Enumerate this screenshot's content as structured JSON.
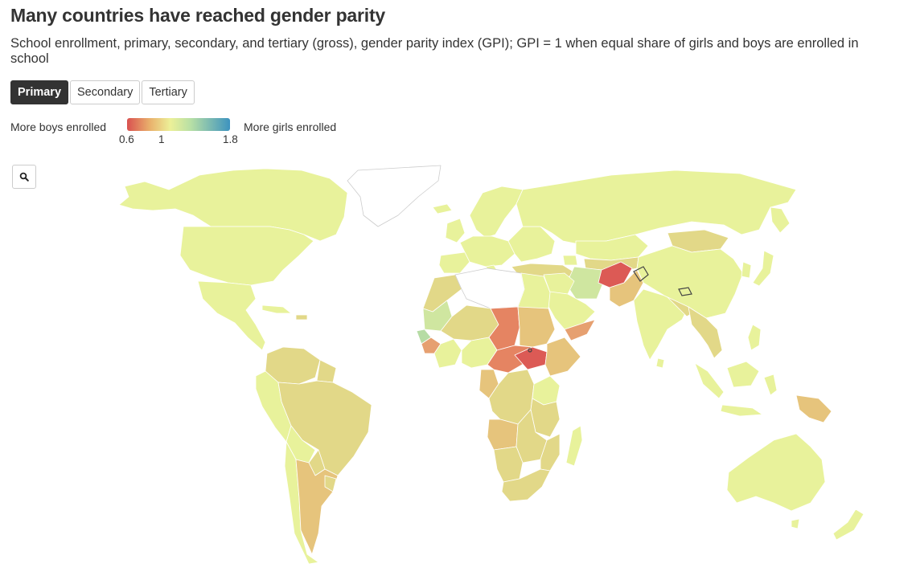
{
  "title": "Many countries have reached gender parity",
  "subtitle": "School enrollment, primary, secondary, and tertiary (gross), gender parity index (GPI); GPI = 1 when equal share of girls and boys are enrolled in school",
  "tabs": [
    {
      "label": "Primary",
      "active": true
    },
    {
      "label": "Secondary",
      "active": false
    },
    {
      "label": "Tertiary",
      "active": false
    }
  ],
  "legend": {
    "left_label": "More boys enrolled",
    "right_label": "More girls enrolled",
    "min": "0.6",
    "mid": "1",
    "max": "1.8",
    "colors": [
      "#d95150",
      "#e9b06c",
      "#ecf098",
      "#b7dfa5",
      "#3d93bf"
    ]
  },
  "zoom_icon": "search-icon",
  "map": {
    "selected_tab": "Primary",
    "colors": {
      "parity": "#e8f29b",
      "slight_boys": "#e2d888",
      "moderate_boys": "#e6c47c",
      "more_boys": "#e6a070",
      "many_boys": "#e58462",
      "most_boys": "#dc5a55",
      "slight_girls": "#cfe6a0",
      "girls": "#b6dca5",
      "no_data": "#ffffff",
      "border": "#ffffff"
    }
  }
}
